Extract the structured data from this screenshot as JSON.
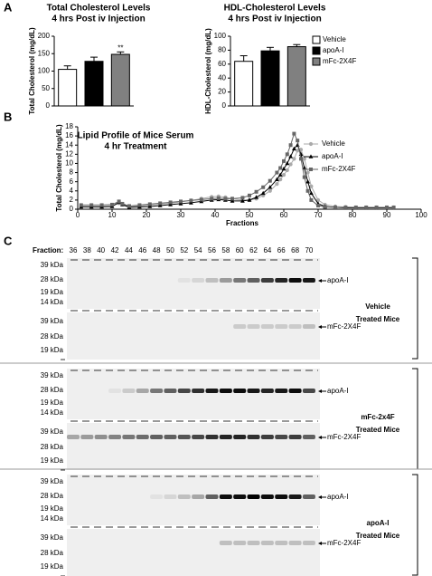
{
  "panel_labels": [
    "A",
    "B",
    "C"
  ],
  "chart_data": [
    {
      "type": "bar",
      "title": "Total Cholesterol Levels",
      "subtitle": "4 hrs Post iv Injection",
      "y_label": "Total Cholesterol (mg/dL)",
      "categories": [
        null,
        null,
        null
      ],
      "values": [
        105,
        128,
        148
      ],
      "errors": [
        10,
        12,
        7
      ],
      "colors": [
        "#ffffff",
        "#000000",
        "#808080"
      ],
      "annotations": [
        null,
        null,
        "**"
      ],
      "ylim": [
        0,
        200
      ],
      "yticks": [
        0,
        50,
        100,
        150,
        200
      ]
    },
    {
      "type": "bar",
      "title": "HDL-Cholesterol Levels",
      "subtitle": "4 hrs Post iv Injection",
      "y_label": "HDL-Cholesterol (mg/dL)",
      "categories": [
        null,
        null,
        null
      ],
      "values": [
        64,
        79,
        85
      ],
      "errors": [
        8,
        5,
        3
      ],
      "colors": [
        "#ffffff",
        "#000000",
        "#808080"
      ],
      "legend": [
        "Vehicle",
        "apoA-I",
        "mFc-2X4F"
      ],
      "ylim": [
        0,
        100
      ],
      "yticks": [
        0,
        20,
        40,
        60,
        80,
        100
      ]
    },
    {
      "type": "line",
      "title": "Lipid Profile of Mice Serum",
      "subtitle": "4 hr Treatment",
      "x_label": "Fractions",
      "y_label": "Total Cholesterol (mg/dL)",
      "x": [
        1,
        4,
        7,
        10,
        12,
        13,
        15,
        18,
        21,
        24,
        27,
        30,
        33,
        36,
        39,
        41,
        43,
        45,
        48,
        50,
        52,
        54,
        56,
        58,
        59,
        60,
        61,
        62,
        63,
        64,
        65,
        66,
        67,
        68,
        70,
        72,
        75,
        78,
        81,
        84,
        87,
        90,
        92
      ],
      "series": [
        {
          "name": "Vehicle",
          "color": "#aaaaaa",
          "marker": "circle",
          "values": [
            0.6,
            0.6,
            0.6,
            0.7,
            1.3,
            1.0,
            0.5,
            0.7,
            0.9,
            1.1,
            1.3,
            1.6,
            1.9,
            2.3,
            2.7,
            2.8,
            2.6,
            2.3,
            2.0,
            2.0,
            2.3,
            3.0,
            4.0,
            5.5,
            6.5,
            7.5,
            8.5,
            9.8,
            11.0,
            12.8,
            13.0,
            11.0,
            8.0,
            5.0,
            2.0,
            1.0,
            0.6,
            0.5,
            0.4,
            0.4,
            0.4,
            0.4,
            0.4
          ]
        },
        {
          "name": "apoA-I",
          "color": "#000000",
          "marker": "triangle",
          "values": [
            0.5,
            0.5,
            0.5,
            0.6,
            1.5,
            1.0,
            0.4,
            0.5,
            0.6,
            0.8,
            1.0,
            1.2,
            1.4,
            1.7,
            2.0,
            2.1,
            2.0,
            1.8,
            1.8,
            2.0,
            2.6,
            3.5,
            4.8,
            6.5,
            7.5,
            8.8,
            10.0,
            11.5,
            13.2,
            14.0,
            12.0,
            9.0,
            6.0,
            3.5,
            1.2,
            0.6,
            0.4,
            0.3,
            0.3,
            0.3,
            0.3,
            0.3,
            0.3
          ]
        },
        {
          "name": "mFc-2X4F",
          "color": "#666666",
          "marker": "square",
          "values": [
            0.9,
            0.9,
            0.9,
            1.0,
            1.7,
            1.2,
            0.7,
            0.9,
            1.1,
            1.3,
            1.5,
            1.7,
            1.9,
            2.1,
            2.3,
            2.4,
            2.3,
            2.3,
            2.5,
            3.0,
            3.8,
            4.8,
            6.2,
            8.0,
            9.0,
            10.5,
            12.0,
            14.0,
            16.5,
            15.0,
            11.0,
            7.0,
            4.0,
            2.0,
            0.8,
            0.5,
            0.4,
            0.4,
            0.4,
            0.4,
            0.4,
            0.4,
            0.4
          ]
        }
      ],
      "xlim": [
        0,
        100
      ],
      "xticks": [
        0,
        10,
        20,
        30,
        40,
        50,
        60,
        70,
        80,
        90,
        100
      ],
      "ylim": [
        0,
        18
      ],
      "yticks": [
        0,
        2,
        4,
        6,
        8,
        10,
        12,
        14,
        16,
        18
      ]
    }
  ],
  "panel_c": {
    "fraction_label": "Fraction:",
    "fractions": [
      "36",
      "38",
      "40",
      "42",
      "44",
      "46",
      "48",
      "50",
      "52",
      "54",
      "56",
      "58",
      "60",
      "62",
      "64",
      "66",
      "68",
      "70"
    ],
    "groups": [
      {
        "label": [
          "Vehicle",
          "Treated Mice"
        ],
        "blots": [
          {
            "markers": [
              "39 kDa",
              "28 kDa",
              "19 kDa",
              "14 kDa"
            ],
            "band": "apoA-I"
          },
          {
            "markers": [
              "39 kDa",
              "28 kDa",
              "19 kDa"
            ],
            "band": "mFc-2X4F"
          }
        ]
      },
      {
        "label": [
          "mFc-2x4F",
          "Treated Mice"
        ],
        "blots": [
          {
            "markers": [
              "39 kDa",
              "28 kDa",
              "19 kDa",
              "14 kDa"
            ],
            "band": "apoA-I"
          },
          {
            "markers": [
              "39 kDa",
              "28 kDa",
              "19 kDa"
            ],
            "band": "mFc-2X4F"
          }
        ]
      },
      {
        "label": [
          "apoA-I",
          "Treated Mice"
        ],
        "blots": [
          {
            "markers": [
              "39 kDa",
              "28 kDa",
              "19 kDa",
              "14 kDa"
            ],
            "band": "apoA-I"
          },
          {
            "markers": [
              "39 kDa",
              "28 kDa",
              "19 kDa"
            ],
            "band": "mFc-2X4F"
          }
        ]
      }
    ]
  }
}
